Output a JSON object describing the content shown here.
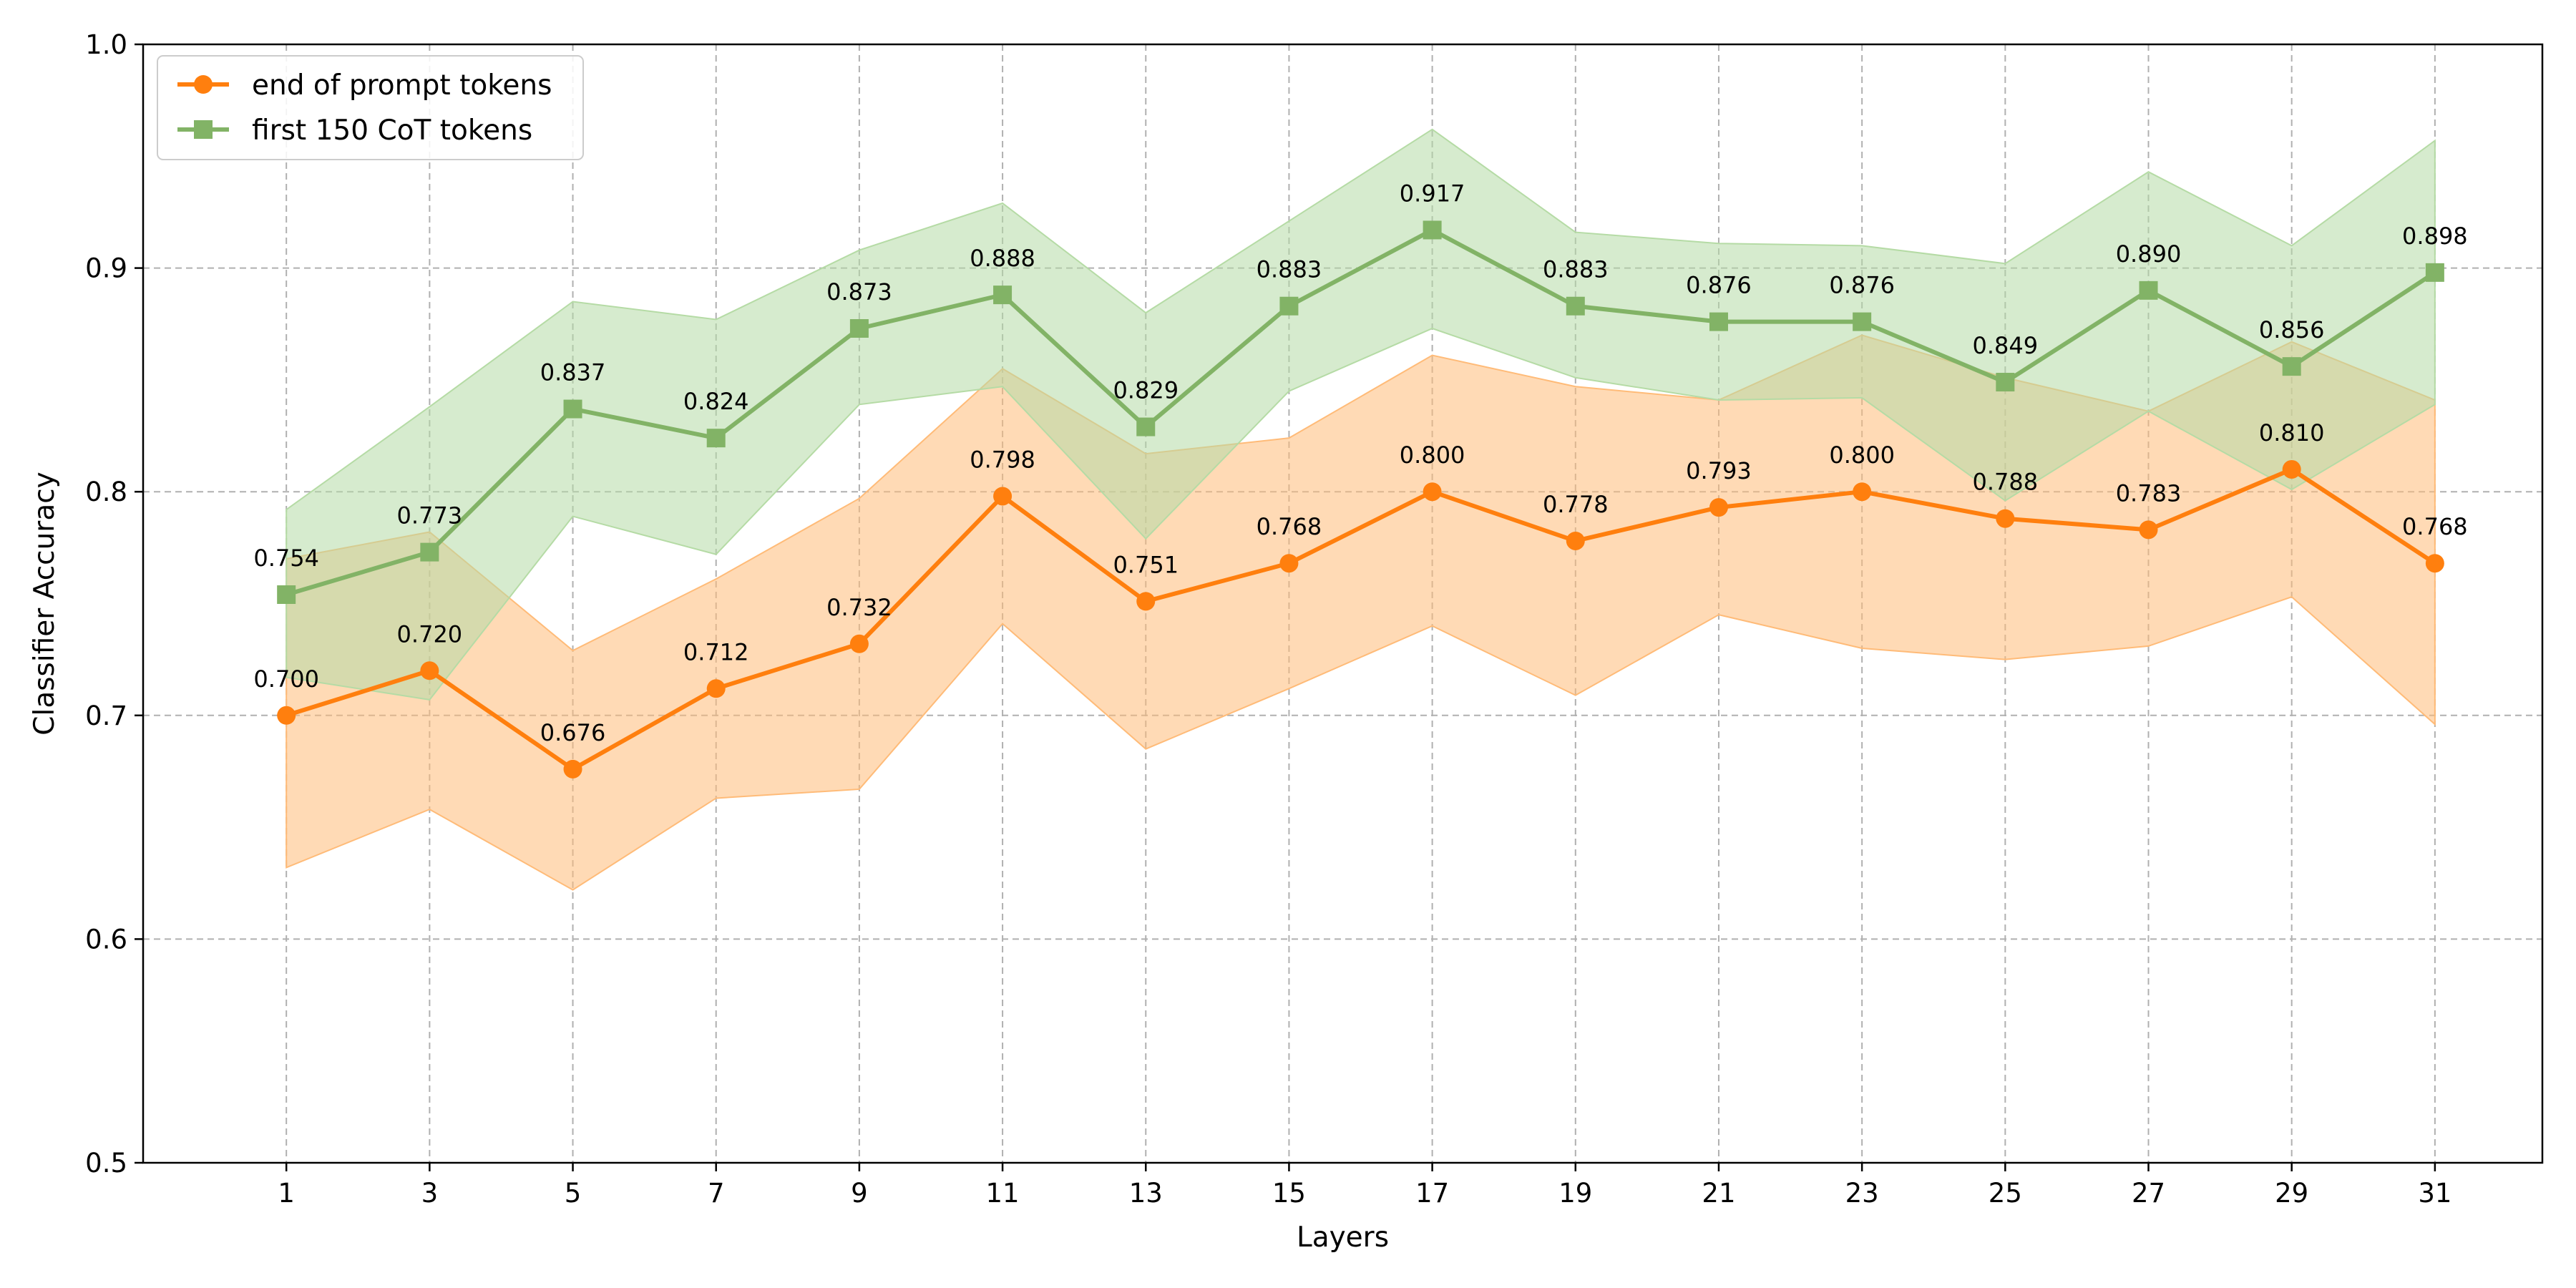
{
  "chart_data": {
    "type": "line",
    "title": "",
    "xlabel": "Layers",
    "ylabel": "Classifier Accuracy",
    "x": [
      1,
      3,
      5,
      7,
      9,
      11,
      13,
      15,
      17,
      19,
      21,
      23,
      25,
      27,
      29,
      31
    ],
    "xlim": [
      -1,
      32.5
    ],
    "ylim": [
      0.5,
      1.0
    ],
    "yticks": [
      0.5,
      0.6,
      0.7,
      0.8,
      0.9,
      1.0
    ],
    "ytick_labels": [
      "0.5",
      "0.6",
      "0.7",
      "0.8",
      "0.9",
      "1.0"
    ],
    "grid": true,
    "legend_position": "top-left",
    "series": [
      {
        "name": "end of prompt tokens",
        "color": "#ff7f0e",
        "band_color": "#ffbb78",
        "marker": "circle",
        "values": [
          0.7,
          0.72,
          0.676,
          0.712,
          0.732,
          0.798,
          0.751,
          0.768,
          0.8,
          0.778,
          0.793,
          0.8,
          0.788,
          0.783,
          0.81,
          0.768
        ],
        "labels": [
          "0.700",
          "0.720",
          "0.676",
          "0.712",
          "0.732",
          "0.798",
          "0.751",
          "0.768",
          "0.800",
          "0.778",
          "0.793",
          "0.800",
          "0.788",
          "0.783",
          "0.810",
          "0.768"
        ],
        "lower": [
          0.632,
          0.658,
          0.622,
          0.663,
          0.667,
          0.741,
          0.685,
          0.712,
          0.74,
          0.709,
          0.745,
          0.73,
          0.725,
          0.731,
          0.753,
          0.696
        ],
        "upper": [
          0.77,
          0.782,
          0.729,
          0.761,
          0.797,
          0.855,
          0.817,
          0.824,
          0.861,
          0.847,
          0.841,
          0.87,
          0.851,
          0.836,
          0.867,
          0.841
        ]
      },
      {
        "name": "first 150 CoT tokens",
        "color": "#82b366",
        "band_color": "#b5dba5",
        "marker": "square",
        "values": [
          0.754,
          0.773,
          0.837,
          0.824,
          0.873,
          0.888,
          0.829,
          0.883,
          0.917,
          0.883,
          0.876,
          0.876,
          0.849,
          0.89,
          0.856,
          0.898
        ],
        "labels": [
          "0.754",
          "0.773",
          "0.837",
          "0.824",
          "0.873",
          "0.888",
          "0.829",
          "0.883",
          "0.917",
          "0.883",
          "0.876",
          "0.876",
          "0.849",
          "0.890",
          "0.856",
          "0.898"
        ],
        "lower": [
          0.717,
          0.707,
          0.789,
          0.772,
          0.839,
          0.847,
          0.779,
          0.845,
          0.873,
          0.851,
          0.841,
          0.842,
          0.796,
          0.836,
          0.801,
          0.839
        ],
        "upper": [
          0.792,
          0.838,
          0.885,
          0.877,
          0.908,
          0.929,
          0.88,
          0.921,
          0.962,
          0.916,
          0.911,
          0.91,
          0.902,
          0.943,
          0.91,
          0.957
        ]
      }
    ]
  }
}
